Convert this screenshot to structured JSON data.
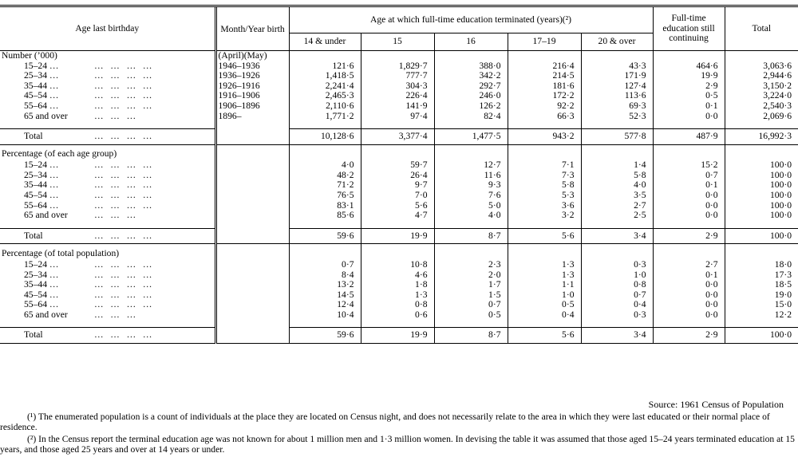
{
  "headers": {
    "age": "Age last birthday",
    "month_year": "Month/Year birth",
    "terminated": "Age at which full-time education terminated (years)(²)",
    "cols": [
      "14 & under",
      "15",
      "16",
      "17–19",
      "20 & over"
    ],
    "still": "Full-time education still continuing",
    "total": "Total"
  },
  "sections": [
    {
      "title": "Number (’000)",
      "birth_label": "(April)(May)",
      "rows": [
        {
          "label": "15–24 …",
          "dots": "…   …   …   …",
          "birth": "1946–1936",
          "vals": [
            "121·6",
            "1,829·7",
            "388·0",
            "216·4",
            "43·3",
            "464·6",
            "3,063·6"
          ]
        },
        {
          "label": "25–34 …",
          "dots": "…   …   …   …",
          "birth": "1936–1926",
          "vals": [
            "1,418·5",
            "777·7",
            "342·2",
            "214·5",
            "171·9",
            "19·9",
            "2,944·6"
          ]
        },
        {
          "label": "35–44 …",
          "dots": "…   …   …   …",
          "birth": "1926–1916",
          "vals": [
            "2,241·4",
            "304·3",
            "292·7",
            "181·6",
            "127·4",
            "2·9",
            "3,150·2"
          ]
        },
        {
          "label": "45–54 …",
          "dots": "…   …   …   …",
          "birth": "1916–1906",
          "vals": [
            "2,465·3",
            "226·4",
            "246·0",
            "172·2",
            "113·6",
            "0·5",
            "3,224·0"
          ]
        },
        {
          "label": "55–64 …",
          "dots": "…   …   …   …",
          "birth": "1906–1896",
          "vals": [
            "2,110·6",
            "141·9",
            "126·2",
            "92·2",
            "69·3",
            "0·1",
            "2,540·3"
          ]
        },
        {
          "label": "65 and over",
          "dots": "…   …   …",
          "birth": "1896–",
          "vals": [
            "1,771·2",
            "97·4",
            "82·4",
            "66·3",
            "52·3",
            "0·0",
            "2,069·6"
          ]
        }
      ],
      "total": {
        "label": "Total",
        "dots": "…   …   …   …",
        "vals": [
          "10,128·6",
          "3,377·4",
          "1,477·5",
          "943·2",
          "577·8",
          "487·9",
          "16,992·3"
        ]
      }
    },
    {
      "title": "Percentage (of each age group)",
      "rows": [
        {
          "label": "15–24 …",
          "dots": "…   …   …   …",
          "vals": [
            "4·0",
            "59·7",
            "12·7",
            "7·1",
            "1·4",
            "15·2",
            "100·0"
          ]
        },
        {
          "label": "25–34 …",
          "dots": "…   …   …   …",
          "vals": [
            "48·2",
            "26·4",
            "11·6",
            "7·3",
            "5·8",
            "0·7",
            "100·0"
          ]
        },
        {
          "label": "35–44 …",
          "dots": "…   …   …   …",
          "vals": [
            "71·2",
            "9·7",
            "9·3",
            "5·8",
            "4·0",
            "0·1",
            "100·0"
          ]
        },
        {
          "label": "45–54 …",
          "dots": "…   …   …   …",
          "vals": [
            "76·5",
            "7·0",
            "7·6",
            "5·3",
            "3·5",
            "0·0",
            "100·0"
          ]
        },
        {
          "label": "55–64 …",
          "dots": "…   …   …   …",
          "vals": [
            "83·1",
            "5·6",
            "5·0",
            "3·6",
            "2·7",
            "0·0",
            "100·0"
          ]
        },
        {
          "label": "65 and over",
          "dots": "…   …   …",
          "vals": [
            "85·6",
            "4·7",
            "4·0",
            "3·2",
            "2·5",
            "0·0",
            "100·0"
          ]
        }
      ],
      "total": {
        "label": "Total",
        "dots": "…   …   …   …",
        "vals": [
          "59·6",
          "19·9",
          "8·7",
          "5·6",
          "3·4",
          "2·9",
          "100·0"
        ]
      }
    },
    {
      "title": "Percentage (of total population)",
      "rows": [
        {
          "label": "15–24 …",
          "dots": "…   …   …   …",
          "vals": [
            "0·7",
            "10·8",
            "2·3",
            "1·3",
            "0·3",
            "2·7",
            "18·0"
          ]
        },
        {
          "label": "25–34 …",
          "dots": "…   …   …   …",
          "vals": [
            "8·4",
            "4·6",
            "2·0",
            "1·3",
            "1·0",
            "0·1",
            "17·3"
          ]
        },
        {
          "label": "35–44 …",
          "dots": "…   …   …   …",
          "vals": [
            "13·2",
            "1·8",
            "1·7",
            "1·1",
            "0·8",
            "0·0",
            "18·5"
          ]
        },
        {
          "label": "45–54 …",
          "dots": "…   …   …   …",
          "vals": [
            "14·5",
            "1·3",
            "1·5",
            "1·0",
            "0·7",
            "0·0",
            "19·0"
          ]
        },
        {
          "label": "55–64 …",
          "dots": "…   …   …   …",
          "vals": [
            "12·4",
            "0·8",
            "0·7",
            "0·5",
            "0·4",
            "0·0",
            "15·0"
          ]
        },
        {
          "label": "65 and over",
          "dots": "…   …   …",
          "vals": [
            "10·4",
            "0·6",
            "0·5",
            "0·4",
            "0·3",
            "0·0",
            "12·2"
          ]
        }
      ],
      "total": {
        "label": "Total",
        "dots": "…   …   …   …",
        "vals": [
          "59·6",
          "19·9",
          "8·7",
          "5·6",
          "3·4",
          "2·9",
          "100·0"
        ]
      }
    }
  ],
  "source": "Source:  1961 Census of Population",
  "footnotes": [
    "(¹) The enumerated population is a count of individuals at the place they are located on Census night, and does not necessarily relate to the area in which they were last educated or their normal place of residence.",
    "(²) In the Census report the terminal education age was not known for about 1 million men and 1·3 million women.  In devising the table it was assumed that those aged 15–24 years terminated education at 15 years, and those aged 25 years and over at 14 years or under."
  ]
}
